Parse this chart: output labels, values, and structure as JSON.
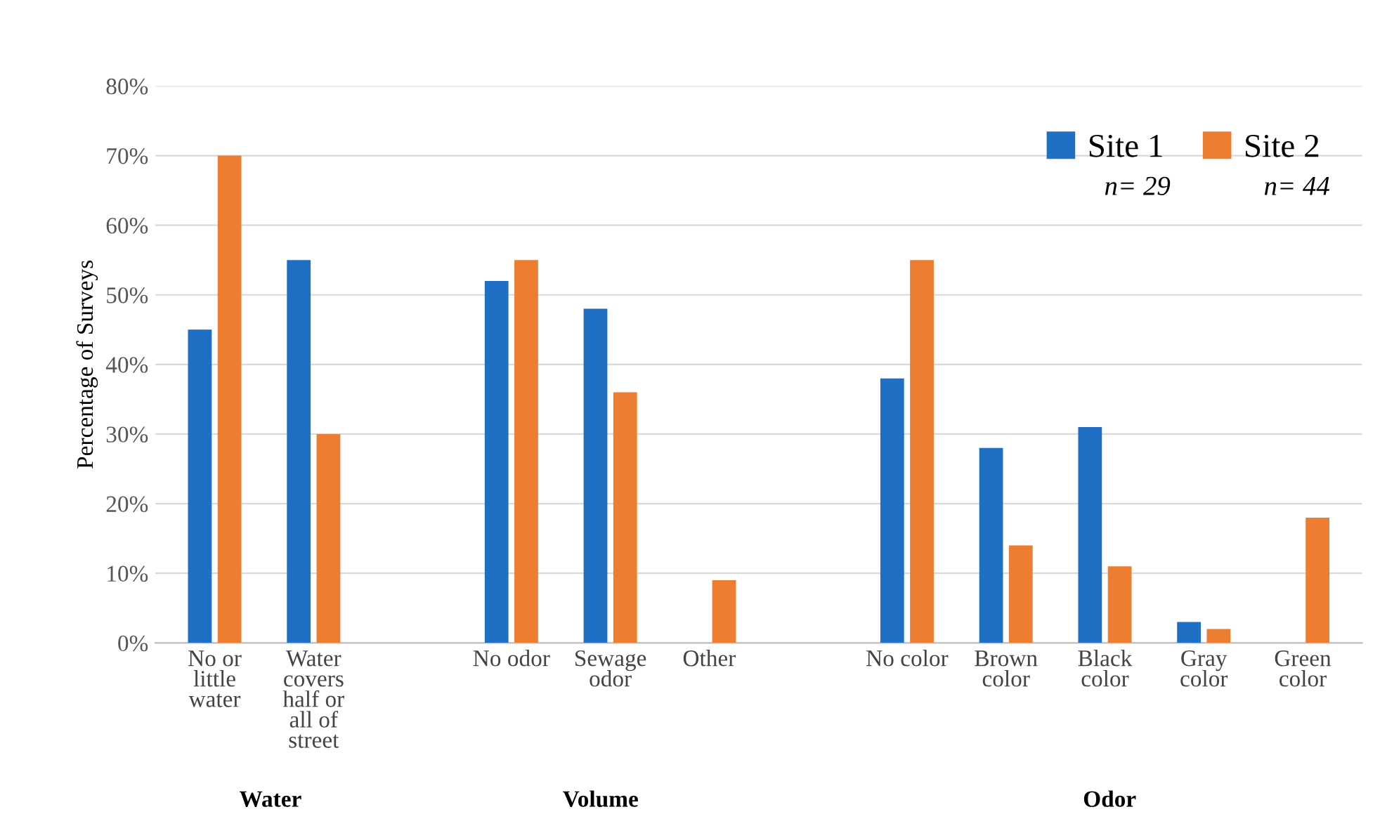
{
  "chart_data": {
    "type": "bar",
    "ylabel": "Percentage of Surveys",
    "categories": [
      "No or\nlittle\nwater",
      "Water\ncovers\nhalf or\nall of\nstreet",
      null,
      "No odor",
      "Sewage\nodor",
      "Other",
      null,
      "No color",
      "Brown\ncolor",
      "Black\ncolor",
      "Gray\ncolor",
      "Green\ncolor"
    ],
    "series": [
      {
        "name": "Site 1",
        "color": "#1f6fc4",
        "values": [
          45,
          55,
          null,
          52,
          48,
          null,
          null,
          38,
          28,
          31,
          3,
          null
        ]
      },
      {
        "name": "Site 2",
        "color": "#ed7d31",
        "values": [
          70,
          30,
          null,
          55,
          36,
          9,
          null,
          55,
          14,
          11,
          2,
          18
        ]
      }
    ],
    "ylim": [
      0,
      80
    ],
    "yticks": [
      {
        "value": 0,
        "label": "0%"
      },
      {
        "value": 10,
        "label": "10%"
      },
      {
        "value": 20,
        "label": "20%"
      },
      {
        "value": 30,
        "label": "30%"
      },
      {
        "value": 40,
        "label": "40%"
      },
      {
        "value": 50,
        "label": "50%"
      },
      {
        "value": 60,
        "label": "60%"
      },
      {
        "value": 70,
        "label": "70%"
      },
      {
        "value": 80,
        "label": "80%"
      }
    ],
    "grid": "y",
    "legend": "top right",
    "annotations": [
      "n= 29",
      "n= 44",
      "Water",
      "Volume",
      "Odor"
    ]
  }
}
